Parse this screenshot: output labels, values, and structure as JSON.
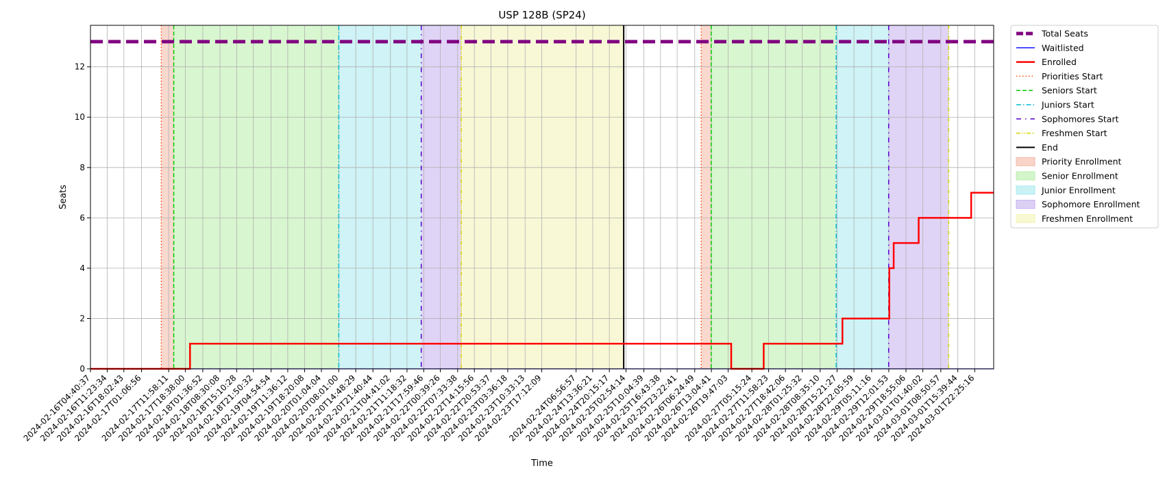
{
  "chart_data": {
    "type": "line",
    "title": "USP 128B (SP24)",
    "xlabel": "Time",
    "ylabel": "Seats",
    "xlim": [
      "2024-02-16T04:40:37",
      "2024-03-02T06:00:00"
    ],
    "ylim": [
      0,
      13.65
    ],
    "grid": true,
    "legend_position": "outside-right-top",
    "yticks": [
      0,
      2,
      4,
      6,
      8,
      10,
      12
    ],
    "xticks": [
      "2024-02-16T04:40:37",
      "2024-02-16T11:23:34",
      "2024-02-16T18:02:43",
      "2024-02-17T01:06:56",
      "2024-02-17T11:58:11",
      "2024-02-17T18:38:00",
      "2024-02-18T01:36:52",
      "2024-02-18T08:30:08",
      "2024-02-18T15:10:28",
      "2024-02-18T21:50:32",
      "2024-02-19T04:54:54",
      "2024-02-19T11:36:12",
      "2024-02-19T18:20:08",
      "2024-02-20T01:04:04",
      "2024-02-20T08:01:00",
      "2024-02-20T14:48:29",
      "2024-02-20T21:40:44",
      "2024-02-21T04:41:02",
      "2024-02-21T11:18:32",
      "2024-02-21T17:59:46",
      "2024-02-22T00:39:26",
      "2024-02-22T07:33:38",
      "2024-02-22T14:15:56",
      "2024-02-22T20:53:37",
      "2024-02-23T03:36:18",
      "2024-02-23T10:33:13",
      "2024-02-23T17:12:09",
      "2024-02-24T06:56:57",
      "2024-02-24T13:36:21",
      "2024-02-24T20:15:17",
      "2024-02-25T02:54:14",
      "2024-02-25T10:04:39",
      "2024-02-25T16:43:38",
      "2024-02-25T23:22:41",
      "2024-02-26T06:24:49",
      "2024-02-26T13:04:41",
      "2024-02-26T19:47:03",
      "2024-02-27T05:15:24",
      "2024-02-27T11:58:23",
      "2024-02-27T18:42:06",
      "2024-02-28T01:25:32",
      "2024-02-28T08:35:10",
      "2024-02-28T15:21:27",
      "2024-02-28T22:05:59",
      "2024-02-29T05:11:16",
      "2024-02-29T12:01:53",
      "2024-02-29T18:55:06",
      "2024-03-01T01:40:02",
      "2024-03-01T08:50:57",
      "2024-03-01T15:39:44",
      "2024-03-01T22:25:16"
    ],
    "series": [
      {
        "name": "Total Seats",
        "color": "#800080",
        "style": "dashed",
        "points": [
          [
            "2024-02-16T04:40:37",
            13
          ],
          [
            "2024-03-02T06:00:00",
            13
          ]
        ]
      },
      {
        "name": "Waitlisted",
        "color": "#0000ff",
        "style": "solid",
        "points": [
          [
            "2024-02-16T04:40:37",
            0
          ],
          [
            "2024-03-02T06:00:00",
            0
          ]
        ]
      },
      {
        "name": "Enrolled",
        "color": "#ff0000",
        "style": "steps",
        "points": [
          [
            "2024-02-16T04:40:37",
            0
          ],
          [
            "2024-02-17T20:30:00",
            1
          ],
          [
            "2024-02-26T21:00:00",
            0
          ],
          [
            "2024-02-27T10:00:00",
            1
          ],
          [
            "2024-02-28T17:30:00",
            2
          ],
          [
            "2024-02-29T12:15:00",
            4
          ],
          [
            "2024-02-29T14:00:00",
            5
          ],
          [
            "2024-03-01T00:00:00",
            6
          ],
          [
            "2024-03-01T21:00:00",
            7
          ],
          [
            "2024-03-02T06:00:00",
            7
          ]
        ]
      }
    ],
    "phase_lines": [
      {
        "name": "Priorities Start",
        "color": "#ff4500",
        "style": "dotted",
        "x": [
          "2024-02-17T09:00:00",
          "2024-02-26T09:00:00"
        ]
      },
      {
        "name": "Seniors Start",
        "color": "#00cc00",
        "style": "dashed",
        "x": [
          "2024-02-17T14:00:00",
          "2024-02-26T13:00:00"
        ]
      },
      {
        "name": "Juniors Start",
        "color": "#00bcd4",
        "style": "dashdot",
        "x": [
          "2024-02-20T08:01:00",
          "2024-02-28T15:00:00"
        ]
      },
      {
        "name": "Sophomores Start",
        "color": "#5500cc",
        "style": "loose-dashdot",
        "x": [
          "2024-02-21T17:00:00",
          "2024-02-29T12:00:00"
        ]
      },
      {
        "name": "Freshmen Start",
        "color": "#d4d400",
        "style": "dashdotdot",
        "x": [
          "2024-02-22T09:00:00",
          "2024-03-01T12:00:00"
        ]
      },
      {
        "name": "End",
        "color": "#000000",
        "style": "solid",
        "x": [
          "2024-02-25T02:00:00"
        ]
      }
    ],
    "shaded_periods": [
      {
        "name": "Priority Enrollment",
        "color": "#f4b8a5",
        "ranges": [
          [
            "2024-02-17T09:00:00",
            "2024-02-17T14:00:00"
          ],
          [
            "2024-02-26T09:00:00",
            "2024-02-26T13:00:00"
          ]
        ]
      },
      {
        "name": "Senior Enrollment",
        "color": "#b8eea8",
        "ranges": [
          [
            "2024-02-17T14:00:00",
            "2024-02-20T08:01:00"
          ],
          [
            "2024-02-26T13:00:00",
            "2024-02-28T15:00:00"
          ]
        ]
      },
      {
        "name": "Junior Enrollment",
        "color": "#a7e9ef",
        "ranges": [
          [
            "2024-02-20T08:01:00",
            "2024-02-21T17:00:00"
          ],
          [
            "2024-02-28T15:00:00",
            "2024-02-29T12:00:00"
          ]
        ]
      },
      {
        "name": "Sophomore Enrollment",
        "color": "#c7b0ee",
        "ranges": [
          [
            "2024-02-21T17:00:00",
            "2024-02-22T09:00:00"
          ],
          [
            "2024-02-29T12:00:00",
            "2024-03-01T12:00:00"
          ]
        ]
      },
      {
        "name": "Freshmen Enrollment",
        "color": "#f3f3b5",
        "ranges": [
          [
            "2024-02-22T09:00:00",
            "2024-02-25T02:00:00"
          ]
        ]
      }
    ],
    "legend": [
      "Total Seats",
      "Waitlisted",
      "Enrolled",
      "Priorities Start",
      "Seniors Start",
      "Juniors Start",
      "Sophomores Start",
      "Freshmen Start",
      "End",
      "Priority Enrollment",
      "Senior Enrollment",
      "Junior Enrollment",
      "Sophomore Enrollment",
      "Freshmen Enrollment"
    ]
  }
}
